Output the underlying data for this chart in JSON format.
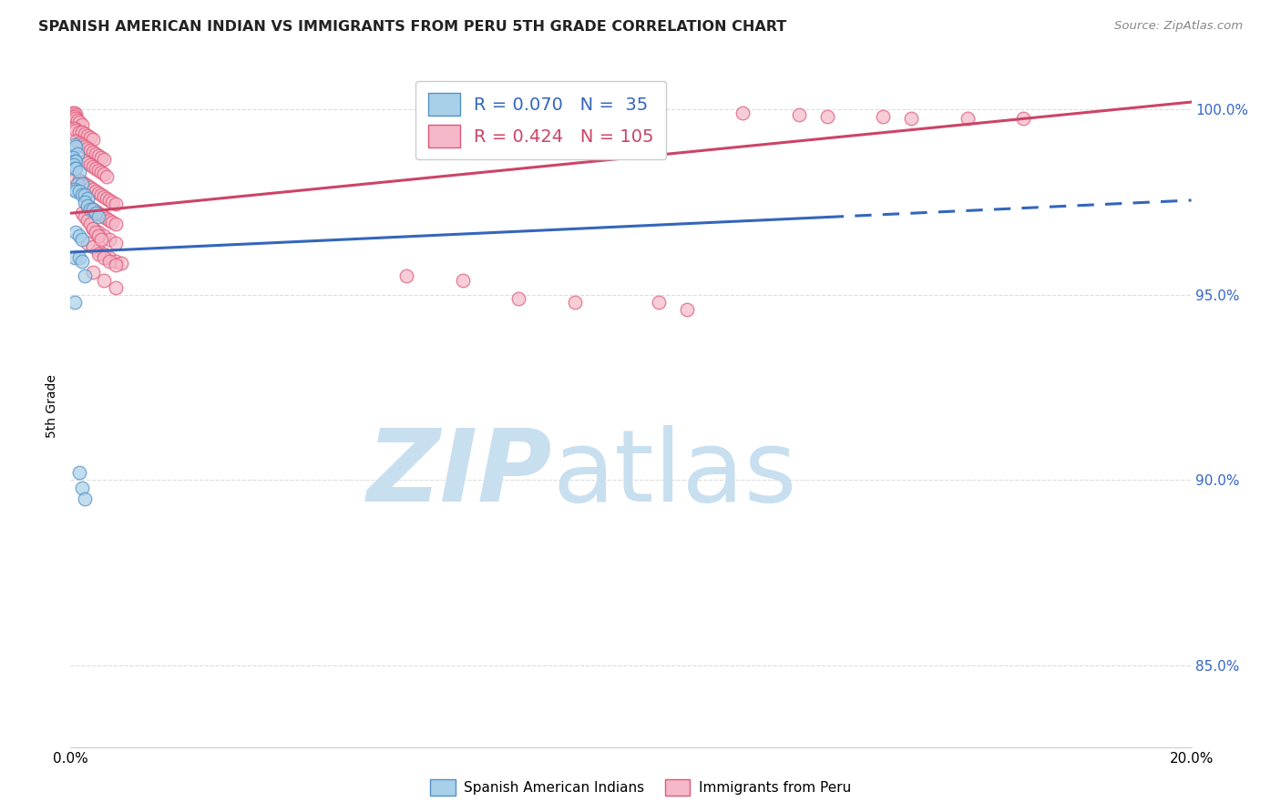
{
  "title": "SPANISH AMERICAN INDIAN VS IMMIGRANTS FROM PERU 5TH GRADE CORRELATION CHART",
  "source": "Source: ZipAtlas.com",
  "ylabel": "5th Grade",
  "ylabel_right_labels": [
    "100.0%",
    "95.0%",
    "90.0%",
    "85.0%"
  ],
  "ylabel_right_values": [
    1.0,
    0.95,
    0.9,
    0.85
  ],
  "xmin": 0.0,
  "xmax": 0.2,
  "ymin": 0.828,
  "ymax": 1.012,
  "blue_R": 0.07,
  "blue_N": 35,
  "pink_R": 0.424,
  "pink_N": 105,
  "blue_color": "#a8d0e8",
  "pink_color": "#f5b8c8",
  "blue_edge_color": "#5590c8",
  "pink_edge_color": "#e05878",
  "blue_line_color": "#3366bb",
  "pink_line_color": "#cc4466",
  "blue_scatter": [
    [
      0.0008,
      0.9905
    ],
    [
      0.001,
      0.99
    ],
    [
      0.0012,
      0.988
    ],
    [
      0.0005,
      0.987
    ],
    [
      0.0008,
      0.986
    ],
    [
      0.001,
      0.986
    ],
    [
      0.0006,
      0.985
    ],
    [
      0.0008,
      0.984
    ],
    [
      0.001,
      0.984
    ],
    [
      0.0015,
      0.983
    ],
    [
      0.0012,
      0.98
    ],
    [
      0.002,
      0.98
    ],
    [
      0.0008,
      0.9785
    ],
    [
      0.001,
      0.978
    ],
    [
      0.0015,
      0.978
    ],
    [
      0.002,
      0.977
    ],
    [
      0.0025,
      0.977
    ],
    [
      0.003,
      0.976
    ],
    [
      0.0025,
      0.975
    ],
    [
      0.003,
      0.974
    ],
    [
      0.0035,
      0.973
    ],
    [
      0.004,
      0.973
    ],
    [
      0.0045,
      0.972
    ],
    [
      0.005,
      0.971
    ],
    [
      0.001,
      0.967
    ],
    [
      0.0015,
      0.966
    ],
    [
      0.002,
      0.965
    ],
    [
      0.0008,
      0.96
    ],
    [
      0.0015,
      0.96
    ],
    [
      0.002,
      0.959
    ],
    [
      0.0025,
      0.955
    ],
    [
      0.0008,
      0.948
    ],
    [
      0.0015,
      0.902
    ],
    [
      0.002,
      0.898
    ],
    [
      0.0025,
      0.895
    ]
  ],
  "pink_scatter": [
    [
      0.0005,
      0.999
    ],
    [
      0.0008,
      0.999
    ],
    [
      0.001,
      0.9985
    ],
    [
      0.0008,
      0.998
    ],
    [
      0.001,
      0.9975
    ],
    [
      0.0012,
      0.997
    ],
    [
      0.0015,
      0.9965
    ],
    [
      0.002,
      0.996
    ],
    [
      0.0008,
      0.995
    ],
    [
      0.001,
      0.9945
    ],
    [
      0.0015,
      0.994
    ],
    [
      0.002,
      0.9938
    ],
    [
      0.0025,
      0.9935
    ],
    [
      0.003,
      0.993
    ],
    [
      0.0035,
      0.9925
    ],
    [
      0.004,
      0.992
    ],
    [
      0.001,
      0.9915
    ],
    [
      0.0015,
      0.991
    ],
    [
      0.002,
      0.9905
    ],
    [
      0.0025,
      0.99
    ],
    [
      0.003,
      0.9895
    ],
    [
      0.0035,
      0.989
    ],
    [
      0.004,
      0.9885
    ],
    [
      0.0045,
      0.988
    ],
    [
      0.005,
      0.9875
    ],
    [
      0.0055,
      0.987
    ],
    [
      0.006,
      0.9865
    ],
    [
      0.0025,
      0.986
    ],
    [
      0.003,
      0.9855
    ],
    [
      0.0035,
      0.985
    ],
    [
      0.004,
      0.9845
    ],
    [
      0.0045,
      0.984
    ],
    [
      0.005,
      0.9835
    ],
    [
      0.0055,
      0.983
    ],
    [
      0.006,
      0.9825
    ],
    [
      0.0065,
      0.982
    ],
    [
      0.001,
      0.9815
    ],
    [
      0.0015,
      0.981
    ],
    [
      0.002,
      0.9805
    ],
    [
      0.0025,
      0.98
    ],
    [
      0.003,
      0.9795
    ],
    [
      0.0035,
      0.979
    ],
    [
      0.004,
      0.9785
    ],
    [
      0.0045,
      0.978
    ],
    [
      0.005,
      0.9775
    ],
    [
      0.0055,
      0.977
    ],
    [
      0.006,
      0.9765
    ],
    [
      0.0065,
      0.976
    ],
    [
      0.007,
      0.9755
    ],
    [
      0.0075,
      0.975
    ],
    [
      0.008,
      0.9745
    ],
    [
      0.003,
      0.974
    ],
    [
      0.0035,
      0.9735
    ],
    [
      0.004,
      0.973
    ],
    [
      0.0045,
      0.9725
    ],
    [
      0.005,
      0.972
    ],
    [
      0.0055,
      0.9715
    ],
    [
      0.006,
      0.971
    ],
    [
      0.0065,
      0.9705
    ],
    [
      0.007,
      0.97
    ],
    [
      0.0075,
      0.9695
    ],
    [
      0.008,
      0.969
    ],
    [
      0.004,
      0.968
    ],
    [
      0.005,
      0.967
    ],
    [
      0.006,
      0.966
    ],
    [
      0.007,
      0.965
    ],
    [
      0.008,
      0.964
    ],
    [
      0.005,
      0.962
    ],
    [
      0.006,
      0.961
    ],
    [
      0.007,
      0.96
    ],
    [
      0.008,
      0.959
    ],
    [
      0.009,
      0.9585
    ],
    [
      0.003,
      0.964
    ],
    [
      0.004,
      0.963
    ],
    [
      0.005,
      0.961
    ],
    [
      0.006,
      0.96
    ],
    [
      0.007,
      0.959
    ],
    [
      0.008,
      0.958
    ],
    [
      0.002,
      0.972
    ],
    [
      0.0025,
      0.971
    ],
    [
      0.003,
      0.97
    ],
    [
      0.0035,
      0.969
    ],
    [
      0.004,
      0.968
    ],
    [
      0.0045,
      0.967
    ],
    [
      0.005,
      0.966
    ],
    [
      0.0055,
      0.965
    ],
    [
      0.004,
      0.956
    ],
    [
      0.006,
      0.954
    ],
    [
      0.008,
      0.952
    ],
    [
      0.1,
      0.999
    ],
    [
      0.12,
      0.999
    ],
    [
      0.13,
      0.9985
    ],
    [
      0.135,
      0.998
    ],
    [
      0.145,
      0.998
    ],
    [
      0.15,
      0.9975
    ],
    [
      0.16,
      0.9975
    ],
    [
      0.17,
      0.9975
    ],
    [
      0.06,
      0.955
    ],
    [
      0.07,
      0.954
    ],
    [
      0.08,
      0.949
    ],
    [
      0.09,
      0.948
    ],
    [
      0.105,
      0.948
    ],
    [
      0.11,
      0.946
    ]
  ],
  "blue_line": {
    "x0": 0.0,
    "x1": 0.2,
    "y0": 0.9615,
    "y1": 0.9755,
    "solid_x1": 0.135
  },
  "pink_line": {
    "x0": 0.0,
    "x1": 0.2,
    "y0": 0.972,
    "y1": 1.002
  },
  "watermark_zip": "ZIP",
  "watermark_atlas": "atlas",
  "watermark_color": "#c8dff0",
  "background_color": "#ffffff",
  "grid_color": "#dddddd",
  "title_color": "#222222",
  "source_color": "#888888",
  "right_axis_color": "#3366cc"
}
